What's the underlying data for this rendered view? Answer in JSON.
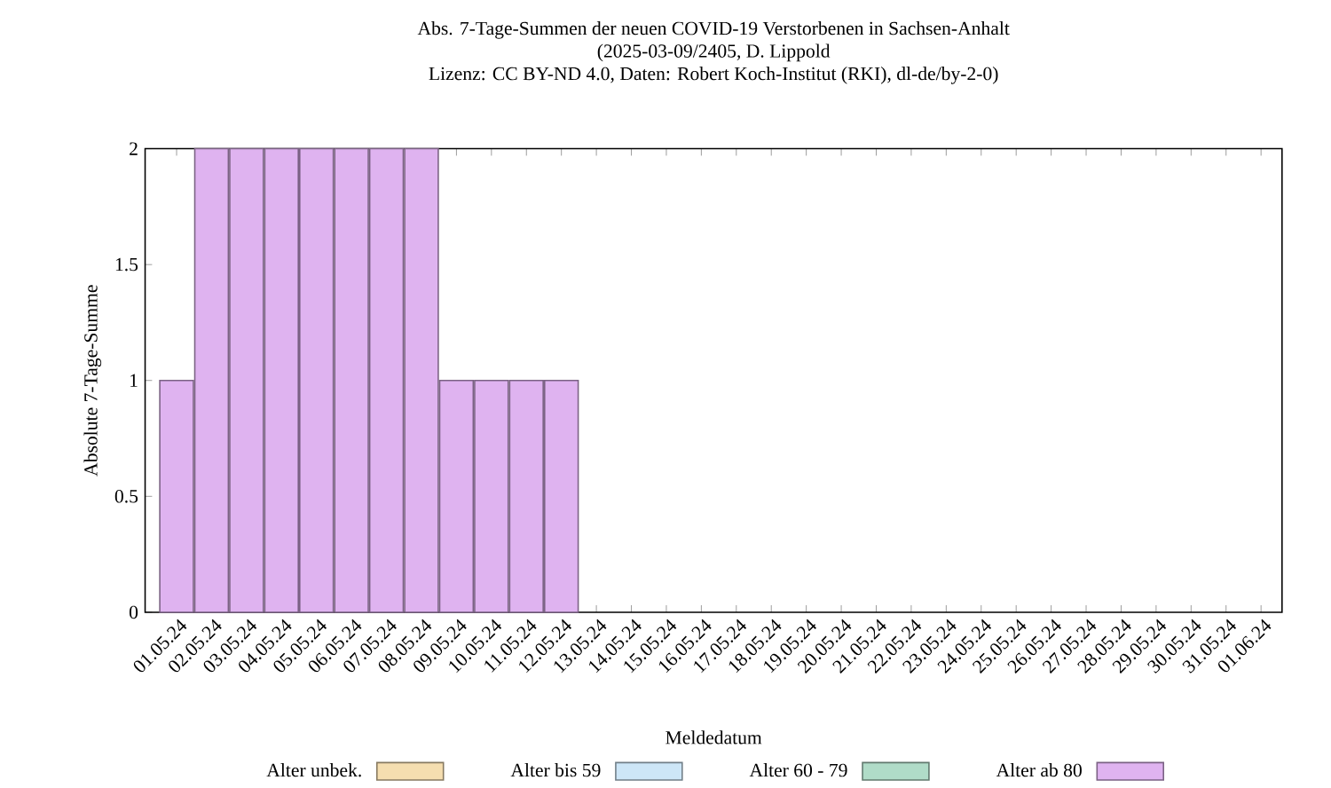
{
  "chart_data": {
    "type": "bar",
    "stacked": true,
    "title": "Abs. 7-Tage-Summen der neuen COVID-19 Verstorbenen in Sachsen-Anhalt",
    "subtitle": "(2025-03-09/2405, D. Lippold",
    "annotations": [
      "Lizenz: CC BY-ND 4.0, Daten: Robert Koch-Institut (RKI), dl-de/by-2-0)"
    ],
    "xlabel": "Meldedatum",
    "ylabel": "Absolute 7-Tage-Summe",
    "categories": [
      "01.05.24",
      "02.05.24",
      "03.05.24",
      "04.05.24",
      "05.05.24",
      "06.05.24",
      "07.05.24",
      "08.05.24",
      "09.05.24",
      "10.05.24",
      "11.05.24",
      "12.05.24",
      "13.05.24",
      "14.05.24",
      "15.05.24",
      "16.05.24",
      "17.05.24",
      "18.05.24",
      "19.05.24",
      "20.05.24",
      "21.05.24",
      "22.05.24",
      "23.05.24",
      "24.05.24",
      "25.05.24",
      "26.05.24",
      "27.05.24",
      "28.05.24",
      "29.05.24",
      "30.05.24",
      "31.05.24",
      "01.06.24"
    ],
    "series": [
      {
        "name": "Alter unbek.",
        "color": "#f5deb0",
        "values": [
          0,
          0,
          0,
          0,
          0,
          0,
          0,
          0,
          0,
          0,
          0,
          0,
          0,
          0,
          0,
          0,
          0,
          0,
          0,
          0,
          0,
          0,
          0,
          0,
          0,
          0,
          0,
          0,
          0,
          0,
          0,
          0
        ]
      },
      {
        "name": "Alter bis 59",
        "color": "#cde6f7",
        "values": [
          0,
          0,
          0,
          0,
          0,
          0,
          0,
          0,
          0,
          0,
          0,
          0,
          0,
          0,
          0,
          0,
          0,
          0,
          0,
          0,
          0,
          0,
          0,
          0,
          0,
          0,
          0,
          0,
          0,
          0,
          0,
          0
        ]
      },
      {
        "name": "Alter 60 - 79",
        "color": "#b0dcc8",
        "values": [
          0,
          0,
          0,
          0,
          0,
          0,
          0,
          0,
          0,
          0,
          0,
          0,
          0,
          0,
          0,
          0,
          0,
          0,
          0,
          0,
          0,
          0,
          0,
          0,
          0,
          0,
          0,
          0,
          0,
          0,
          0,
          0
        ]
      },
      {
        "name": "Alter ab 80",
        "color": "#dfb3f0",
        "values": [
          1,
          2,
          2,
          2,
          2,
          2,
          2,
          2,
          1,
          1,
          1,
          1,
          0,
          0,
          0,
          0,
          0,
          0,
          0,
          0,
          0,
          0,
          0,
          0,
          0,
          0,
          0,
          0,
          0,
          0,
          0,
          0
        ]
      }
    ],
    "ylim": [
      0,
      2
    ],
    "yticks": [
      0,
      0.5,
      1,
      1.5,
      2
    ],
    "legend": "bottom"
  }
}
